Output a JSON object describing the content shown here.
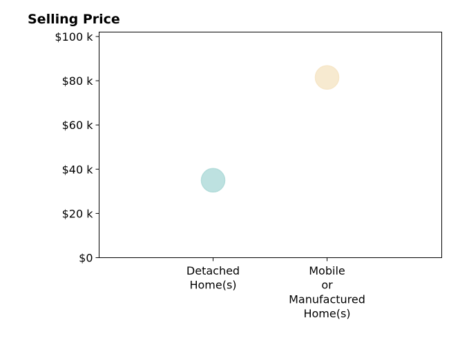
{
  "chart_data": {
    "type": "scatter",
    "title": "Selling Price",
    "xlabel": "",
    "ylabel": "",
    "categories": [
      [
        "Detached",
        "Home(s)"
      ],
      [
        "Mobile",
        "or",
        "Manufactured",
        "Home(s)"
      ]
    ],
    "y_ticks": [
      "$0",
      "$20 k",
      "$40 k",
      "$60 k",
      "$80 k",
      "$100 k"
    ],
    "y_tick_values": [
      0,
      20000,
      40000,
      60000,
      80000,
      100000
    ],
    "ylim": [
      0,
      102000
    ],
    "points": [
      {
        "category_index": 0,
        "value": 35000,
        "color": "#b2dcda"
      },
      {
        "category_index": 1,
        "value": 81500,
        "color": "#f6e6c8"
      }
    ],
    "grid": false,
    "legend": "none"
  }
}
